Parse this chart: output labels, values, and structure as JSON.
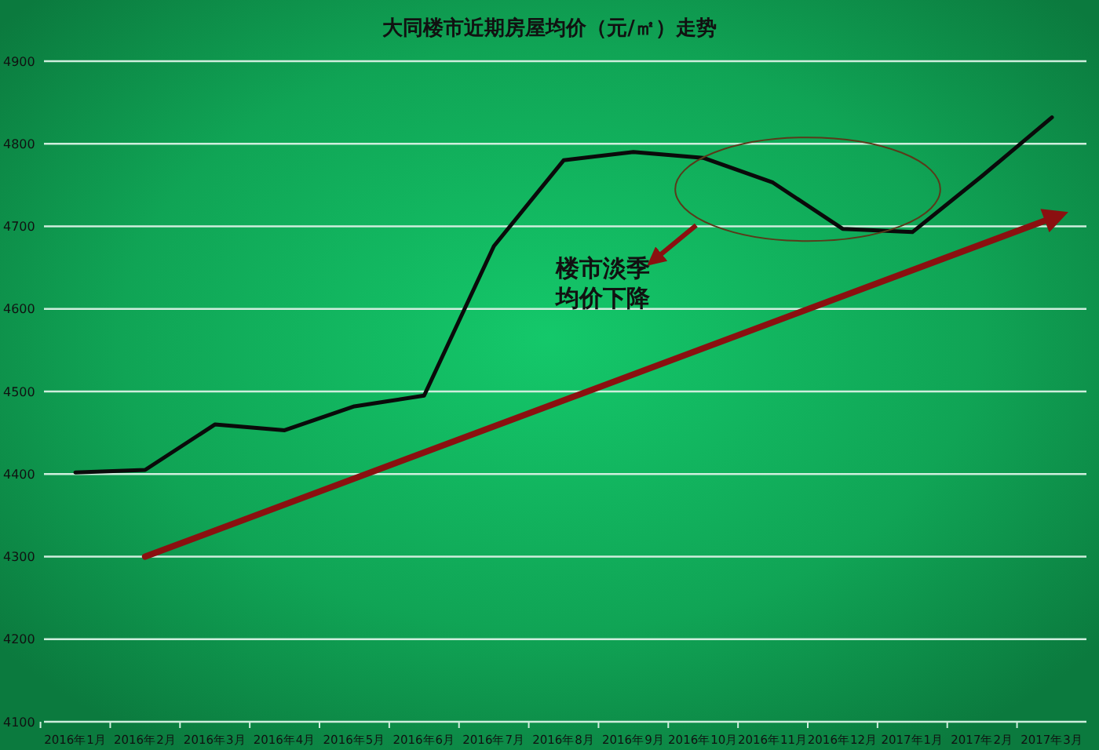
{
  "chart_data": {
    "type": "line",
    "title": "大同楼市近期房屋均价（元/㎡）走势",
    "categories": [
      "2016年1月",
      "2016年2月",
      "2016年3月",
      "2016年4月",
      "2016年5月",
      "2016年6月",
      "2016年7月",
      "2016年8月",
      "2016年9月",
      "2016年10月",
      "2016年11月",
      "2016年12月",
      "2017年1月",
      "2017年2月",
      "2017年3月"
    ],
    "series": [
      {
        "color": "#0a0a0a",
        "values": [
          4402,
          4405,
          4460,
          4453,
          4482,
          4495,
          4676,
          4780,
          4790,
          4783,
          4753,
          4697,
          4693,
          4761,
          4832
        ]
      },
      {
        "type": "line",
        "color": "#8b1010",
        "x": [
          "2016年2月",
          "2017年3月"
        ],
        "values": [
          4300,
          4710
        ]
      }
    ],
    "ylim": [
      4100,
      4900
    ],
    "yticks": [
      4100,
      4200,
      4300,
      4400,
      4500,
      4600,
      4700,
      4800,
      4900
    ],
    "grid": "y",
    "marker": "none",
    "line_style": "solid",
    "annotations": [
      "楼市淡季",
      "均价下降"
    ]
  }
}
